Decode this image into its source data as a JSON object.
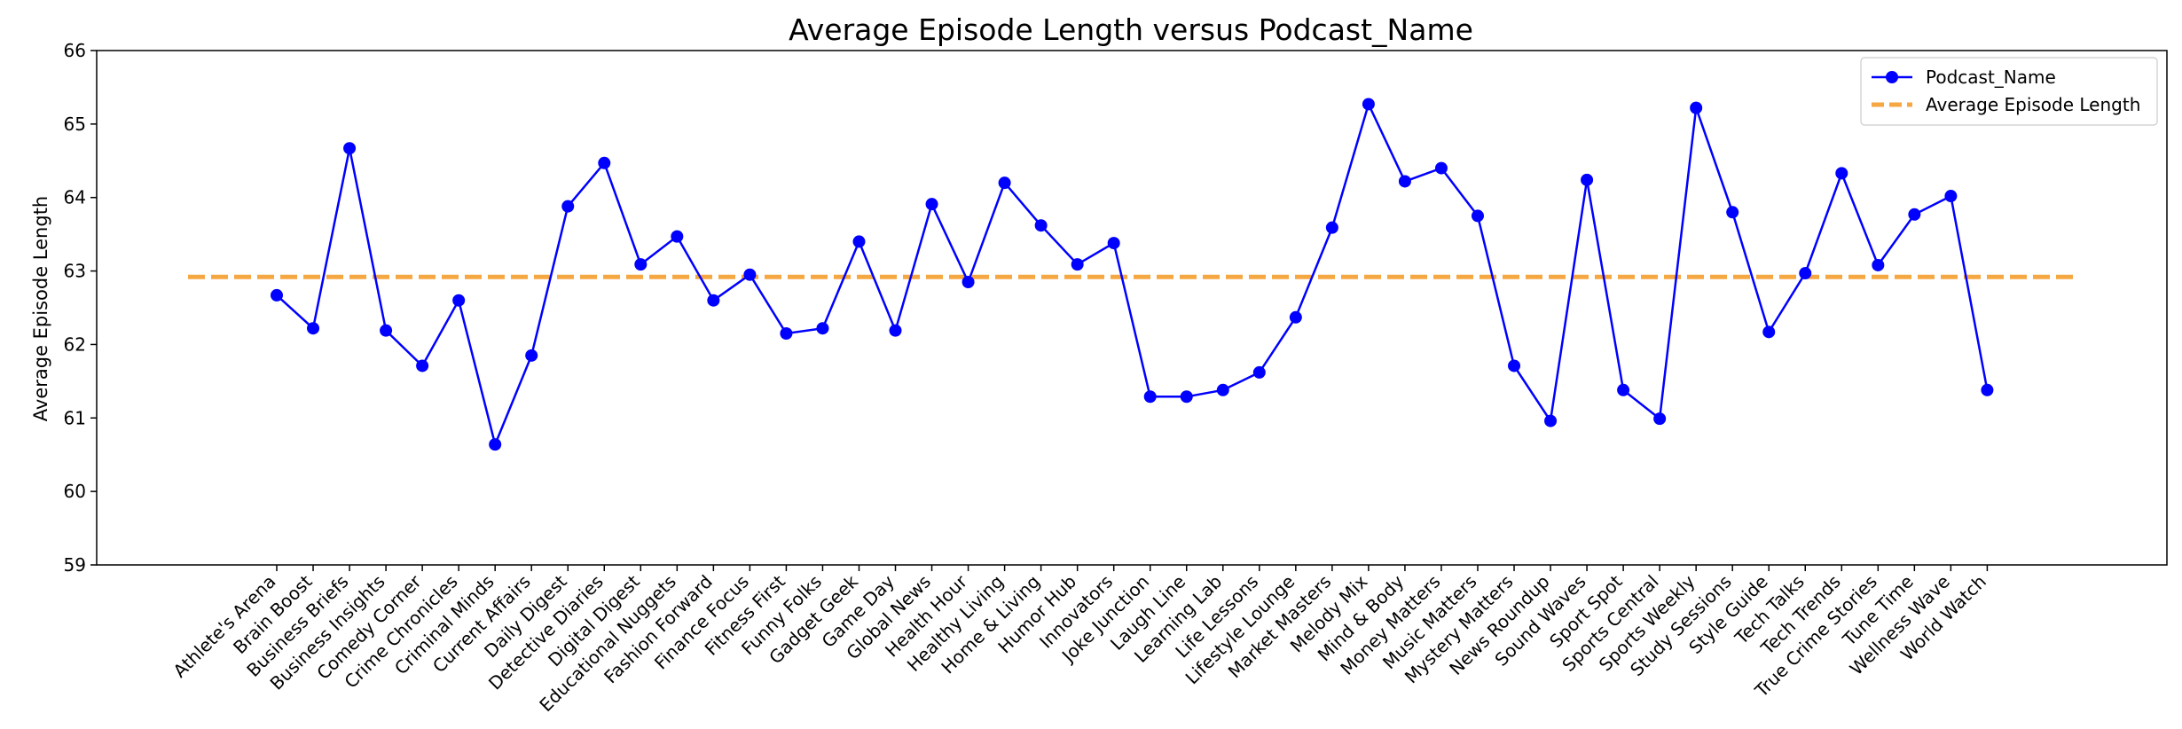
{
  "chart_data": {
    "type": "line",
    "title": "Average Episode Length versus Podcast_Name",
    "xlabel": "",
    "ylabel": "Average Episode Length",
    "ylim": [
      59,
      66
    ],
    "yticks": [
      "59",
      "60",
      "61",
      "62",
      "63",
      "64",
      "65",
      "66"
    ],
    "grid": false,
    "legend_position": "top-right",
    "categories": [
      "Athlete's Arena",
      "Brain Boost",
      "Business Briefs",
      "Business Insights",
      "Comedy Corner",
      "Crime Chronicles",
      "Criminal Minds",
      "Current Affairs",
      "Daily Digest",
      "Detective Diaries",
      "Digital Digest",
      "Educational Nuggets",
      "Fashion Forward",
      "Finance Focus",
      "Fitness First",
      "Funny Folks",
      "Gadget Geek",
      "Game Day",
      "Global News",
      "Health Hour",
      "Healthy Living",
      "Home & Living",
      "Humor Hub",
      "Innovators",
      "Joke Junction",
      "Laugh Line",
      "Learning Lab",
      "Life Lessons",
      "Lifestyle Lounge",
      "Market Masters",
      "Melody Mix",
      "Mind & Body",
      "Money Matters",
      "Music Matters",
      "Mystery Matters",
      "News Roundup",
      "Sound Waves",
      "Sport Spot",
      "Sports Central",
      "Sports Weekly",
      "Study Sessions",
      "Style Guide",
      "Tech Talks",
      "Tech Trends",
      "True Crime Stories",
      "Tune Time",
      "Wellness Wave",
      "World Watch"
    ],
    "series": [
      {
        "name": "Podcast_Name",
        "color": "#0000ff",
        "values": [
          62.67,
          62.22,
          64.67,
          62.19,
          61.71,
          62.6,
          60.64,
          61.85,
          63.88,
          64.47,
          63.09,
          63.47,
          62.6,
          62.95,
          62.15,
          62.22,
          63.4,
          62.19,
          63.91,
          62.85,
          64.2,
          63.62,
          63.09,
          63.38,
          61.29,
          61.29,
          61.38,
          61.62,
          62.37,
          63.59,
          65.27,
          64.22,
          64.4,
          63.75,
          61.71,
          60.96,
          64.24,
          61.38,
          60.99,
          65.22,
          63.8,
          62.17,
          62.97,
          64.33,
          63.08,
          63.77,
          64.02,
          61.38
        ]
      }
    ],
    "reference_line": {
      "name": "Average Episode Length",
      "value": 62.92,
      "color": "#f5a742",
      "style": "dashed"
    }
  }
}
